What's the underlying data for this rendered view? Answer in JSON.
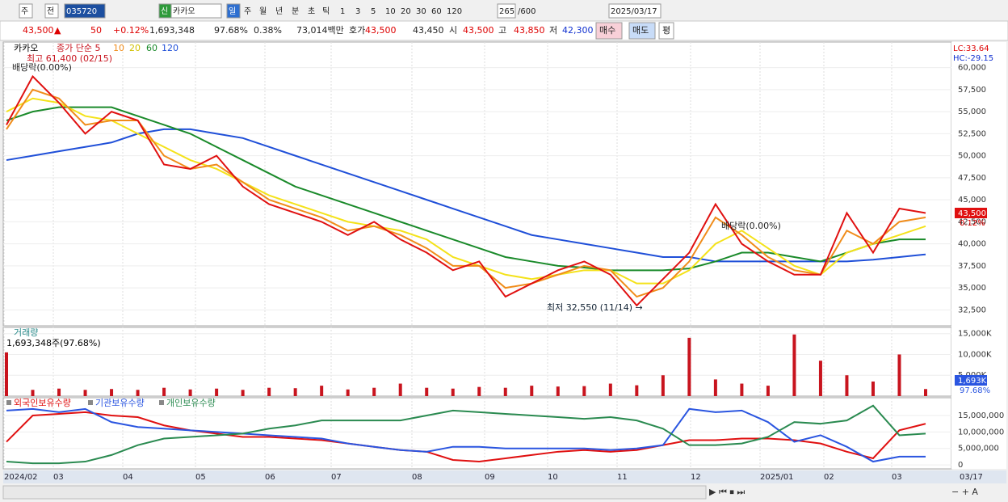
{
  "toolbar": {
    "items": [
      "주",
      "전",
      "035720",
      "신",
      "카카오",
      "일",
      "주",
      "월",
      "년",
      "분",
      "초",
      "틱",
      "1",
      "3",
      "5",
      "10",
      "20",
      "30",
      "60",
      "120",
      "265",
      "/600",
      "2025/03/17"
    ]
  },
  "quote": {
    "items": [
      "43,500",
      "▲",
      "50",
      "+0.12%",
      "1,693,348",
      "97.68%",
      "0.38%",
      "73,014백만",
      "호가",
      "43,500",
      "43,450",
      "시",
      "43,500",
      "고",
      "43,850",
      "저",
      "42,300",
      "매수",
      "매도",
      "평"
    ]
  },
  "price_chart": {
    "type": "line",
    "title": "카카오",
    "legend": [
      "종가 단순 5",
      "10",
      "20",
      "60",
      "120"
    ],
    "annotations": [
      "최고 61,400 (02/15)",
      "배당락(0.00%)",
      "배당락(0.00%)",
      "최저 32,550 (11/14) →"
    ],
    "side_labels": [
      "LC:33.64",
      "HC:-29.15",
      "43,500",
      "0.12%"
    ],
    "ylim": [
      30700,
      62900
    ],
    "yticks": [
      {
        "value": 60000,
        "label": "60,000"
      },
      {
        "value": 57500,
        "label": "57,500"
      },
      {
        "value": 55000,
        "label": "55,000"
      },
      {
        "value": 52500,
        "label": "52,500"
      },
      {
        "value": 50000,
        "label": "50,000"
      },
      {
        "value": 47500,
        "label": "47,500"
      },
      {
        "value": 45000,
        "label": "45,000"
      },
      {
        "value": 42500,
        "label": "42,500"
      },
      {
        "value": 40000,
        "label": "40,000"
      },
      {
        "value": 37500,
        "label": "37,500"
      },
      {
        "value": 35000,
        "label": "35,000"
      },
      {
        "value": 32500,
        "label": "32,500"
      }
    ],
    "series": [
      {
        "color": "#1f4fd8",
        "values": [
          49500,
          50000,
          50500,
          51000,
          51500,
          52500,
          53000,
          53000,
          52500,
          52000,
          51000,
          50000,
          49000,
          48000,
          47000,
          46000,
          45000,
          44000,
          43000,
          42000,
          41000,
          40500,
          40000,
          39500,
          39000,
          38500,
          38500,
          38000,
          38000,
          38000,
          38000,
          38000,
          38000,
          38200,
          38500,
          38800
        ]
      },
      {
        "color": "#1a8a2a",
        "values": [
          54000,
          55000,
          55500,
          55500,
          55500,
          54500,
          53500,
          52500,
          51000,
          49500,
          48000,
          46500,
          45500,
          44500,
          43500,
          42500,
          41500,
          40500,
          39500,
          38500,
          38000,
          37500,
          37300,
          37000,
          37000,
          37000,
          37200,
          38000,
          39000,
          39000,
          38500,
          38000,
          39000,
          40000,
          40500,
          40500
        ]
      },
      {
        "color": "#f4e21a",
        "values": [
          55000,
          56500,
          56000,
          54500,
          54000,
          52500,
          51000,
          49500,
          48500,
          47000,
          45500,
          44500,
          43500,
          42500,
          42000,
          41500,
          40500,
          38500,
          37500,
          36500,
          36000,
          36500,
          37000,
          37000,
          35500,
          35500,
          37000,
          40000,
          41500,
          39500,
          37500,
          36500,
          39000,
          40000,
          41000,
          42000
        ]
      },
      {
        "color": "#f08c1a",
        "values": [
          53000,
          57500,
          56500,
          53500,
          54000,
          54000,
          50000,
          48500,
          49000,
          47000,
          45000,
          44000,
          43000,
          41500,
          42000,
          41000,
          39500,
          37500,
          37500,
          35000,
          35500,
          36500,
          37500,
          37000,
          34000,
          35000,
          38000,
          43000,
          41000,
          38500,
          37000,
          36500,
          41500,
          40000,
          42500,
          43000
        ]
      },
      {
        "color": "#e01010",
        "values": [
          53500,
          59000,
          56000,
          52500,
          55000,
          54000,
          49000,
          48500,
          50000,
          46500,
          44500,
          43500,
          42500,
          41000,
          42500,
          40500,
          39000,
          37000,
          38000,
          34000,
          35500,
          37000,
          38000,
          36500,
          33000,
          36000,
          39000,
          44500,
          40000,
          38000,
          36500,
          36500,
          43500,
          39000,
          44000,
          43500
        ]
      }
    ]
  },
  "volume_chart": {
    "type": "bar",
    "title": "거래량",
    "subtitle": "1,693,348주(97.68%)",
    "side_labels": [
      "1,693K",
      "97.68%"
    ],
    "color": "#c8141e",
    "ylim": [
      0,
      16500
    ],
    "yticks": [
      {
        "value": 15000,
        "label": "15,000K"
      },
      {
        "value": 10000,
        "label": "10,000K"
      },
      {
        "value": 5000,
        "label": "5,000K"
      }
    ],
    "values": [
      10500,
      1500,
      1800,
      1500,
      1700,
      1500,
      2000,
      1600,
      1800,
      1500,
      2000,
      1900,
      2500,
      1600,
      2000,
      3000,
      2000,
      1800,
      2200,
      2000,
      2500,
      2300,
      2400,
      3000,
      2600,
      5000,
      14000,
      4000,
      3000,
      2500,
      14800,
      8500,
      5000,
      3500,
      10000,
      1693
    ]
  },
  "holdings_chart": {
    "type": "line",
    "ylim": [
      -1200000,
      20400000
    ],
    "yticks": [
      {
        "value": 15000000,
        "label": "15,000,000"
      },
      {
        "value": 10000000,
        "label": "10,000,000"
      },
      {
        "value": 5000000,
        "label": "5,000,000"
      },
      0
    ],
    "series": [
      {
        "name": "외국인보유수량",
        "color": "#e01010",
        "values": [
          7000000,
          15000000,
          15500000,
          16000000,
          15000000,
          14500000,
          12000000,
          10500000,
          9500000,
          8500000,
          8500000,
          8000000,
          7500000,
          6500000,
          5500000,
          4500000,
          4000000,
          1500000,
          1000000,
          2000000,
          3000000,
          4000000,
          4500000,
          4000000,
          4500000,
          6000000,
          7500000,
          7500000,
          8000000,
          8000000,
          7500000,
          6500000,
          4000000,
          2000000,
          10500000,
          12500000
        ]
      },
      {
        "name": "기관보유수량",
        "color": "#2a55e0",
        "values": [
          16500000,
          17000000,
          16000000,
          17000000,
          13000000,
          11500000,
          11000000,
          10500000,
          10000000,
          9500000,
          9000000,
          8500000,
          8000000,
          6500000,
          5500000,
          4500000,
          4000000,
          5500000,
          5500000,
          5000000,
          5000000,
          5000000,
          5000000,
          4500000,
          5000000,
          6000000,
          17000000,
          16000000,
          16500000,
          13000000,
          7000000,
          9000000,
          5500000,
          1000000,
          2500000,
          2500000
        ]
      },
      {
        "name": "개인보유수량",
        "color": "#2a8a50",
        "values": [
          1000000,
          500000,
          500000,
          1000000,
          3000000,
          6000000,
          8000000,
          8500000,
          9000000,
          9500000,
          11000000,
          12000000,
          13500000,
          13500000,
          13500000,
          13500000,
          15000000,
          16500000,
          16000000,
          15500000,
          15000000,
          14500000,
          14000000,
          14500000,
          13500000,
          11000000,
          6000000,
          6000000,
          6500000,
          8500000,
          13000000,
          12500000,
          13500000,
          18000000,
          9000000,
          9500000
        ]
      }
    ]
  },
  "x_axis": {
    "categories": [
      "2024/02",
      "03",
      "04",
      "05",
      "06",
      "07",
      "08",
      "09",
      "10",
      "11",
      "12",
      "2025/01",
      "02",
      "03"
    ],
    "end_label": "03/17"
  }
}
